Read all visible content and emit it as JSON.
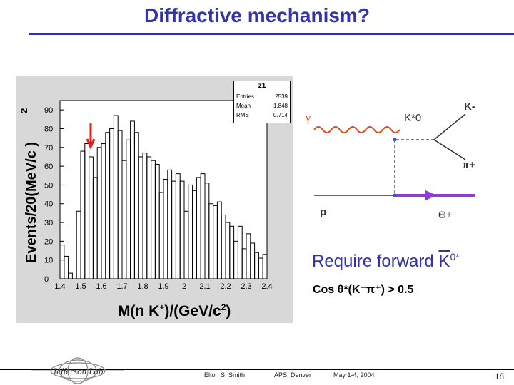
{
  "title": "Diffractive mechanism?",
  "histogram": {
    "y_axis_label": "Events/20(MeV/c )",
    "y_axis_sup": "2",
    "x_axis_label_1": "M(n K",
    "x_axis_sup_1": "+",
    "x_axis_label_2": ")/(GeV/c",
    "x_axis_sup_2": "2",
    "x_axis_label_3": ")",
    "stats": {
      "name": "z1",
      "rows": [
        {
          "label": "Entries",
          "value": "2539"
        },
        {
          "label": "Mean",
          "value": "1.848"
        },
        {
          "label": "RMS",
          "value": "0.714"
        }
      ]
    }
  },
  "chart_data": {
    "type": "histogram",
    "title": "z1",
    "xlabel": "M(n K+)/(GeV/c2)",
    "ylabel": "Events/20(MeV/c2)",
    "xlim": [
      1.4,
      2.4
    ],
    "ylim": [
      0,
      95
    ],
    "x_ticks": [
      "1.4",
      "1.5",
      "1.6",
      "1.7",
      "1.8",
      "1.9",
      "2",
      "2.1",
      "2.2",
      "2.3",
      "2.4"
    ],
    "y_ticks": [
      "0",
      "10",
      "20",
      "30",
      "40",
      "50",
      "60",
      "70",
      "80",
      "90"
    ],
    "bin_width": 0.02,
    "bin_starts": [
      1.4,
      1.42,
      1.44,
      1.46,
      1.48,
      1.5,
      1.52,
      1.54,
      1.56,
      1.58,
      1.6,
      1.62,
      1.64,
      1.66,
      1.68,
      1.7,
      1.72,
      1.74,
      1.76,
      1.78,
      1.8,
      1.82,
      1.84,
      1.86,
      1.88,
      1.9,
      1.92,
      1.94,
      1.96,
      1.98,
      2.0,
      2.02,
      2.04,
      2.06,
      2.08,
      2.1,
      2.12,
      2.14,
      2.16,
      2.18,
      2.2,
      2.22,
      2.24,
      2.26,
      2.28,
      2.3,
      2.32,
      2.34,
      2.36,
      2.38
    ],
    "values": [
      18,
      12,
      3,
      0,
      36,
      68,
      72,
      65,
      54,
      70,
      72,
      78,
      80,
      87,
      79,
      63,
      74,
      84,
      78,
      65,
      67,
      65,
      63,
      61,
      46,
      53,
      58,
      52,
      56,
      52,
      36,
      50,
      47,
      54,
      56,
      51,
      40,
      39,
      41,
      34,
      30,
      28,
      20,
      28,
      16,
      24,
      19,
      14,
      11,
      13
    ],
    "annotations": [
      "arrow at 1.52"
    ]
  },
  "diagram": {
    "gamma": "γ",
    "kstar": "K*0",
    "kminus": "K-",
    "piplus": "π+",
    "proton": "p",
    "theta": "Θ+"
  },
  "forward_text": "Require forward ",
  "forward_k": "K",
  "forward_k_sup": "0*",
  "cos_text": "Cos θ*(K⁻π⁺) > 0.5",
  "footer": {
    "author": "Elton S. Smith",
    "meeting": "APS, Denver",
    "date": "May 1-4, 2004",
    "page": "18",
    "logo": "Jefferson Lab"
  },
  "colors": {
    "title": "#3333aa",
    "accent_purple": "#8e3bd8",
    "gamma_line": "#e24a1a",
    "arrow": "#e0201a"
  }
}
